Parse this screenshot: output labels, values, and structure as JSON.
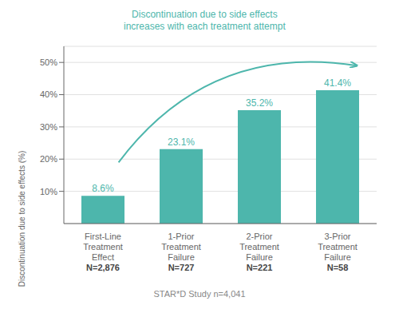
{
  "chart_data": {
    "type": "bar",
    "categories": [
      "First-Line\nTreatment\nEffect\nN=2,876",
      "1-Prior\nTreatment\nFailure\nN=727",
      "2-Prior\nTreatment\nFailure\nN=221",
      "3-Prior\nTreatment\nFailure\nN=58"
    ],
    "values": [
      8.6,
      23.1,
      35.2,
      41.4
    ],
    "value_labels": [
      "8.6%",
      "23.1%",
      "35.2%",
      "41.4%"
    ],
    "data_labels": true,
    "color": "#4DB6AC",
    "ylabel": "Discontinuation due to side effects (%)",
    "ylim": [
      0,
      55
    ],
    "yticks": [
      {
        "value": 10,
        "label": "10%"
      },
      {
        "value": 20,
        "label": "20%"
      },
      {
        "value": 30,
        "label": "30%"
      },
      {
        "value": 40,
        "label": "40%"
      },
      {
        "value": 50,
        "label": "50%"
      }
    ],
    "grid": true,
    "annotation": "Discontinuation due to side effects\nincreases with each treatment attempt",
    "footer": "STAR*D Study n=4,041"
  }
}
